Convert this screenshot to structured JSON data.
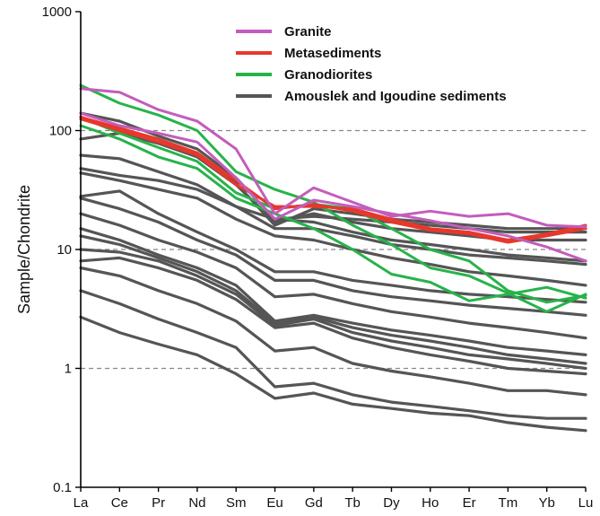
{
  "chart_data": {
    "type": "line",
    "title": "",
    "xlabel": "",
    "ylabel": "Sample/Chondrite",
    "yscale": "log",
    "ylim": [
      0.1,
      1000
    ],
    "yticks": [
      "0.1",
      "1",
      "10",
      "100",
      "1000"
    ],
    "categories": [
      "La",
      "Ce",
      "Pr",
      "Nd",
      "Sm",
      "Eu",
      "Gd",
      "Tb",
      "Dy",
      "Ho",
      "Er",
      "Tm",
      "Yb",
      "Lu"
    ],
    "gridlines": [
      1,
      10,
      100
    ],
    "grid": "dashed horizontal at 1, 10, 100",
    "legend_position": "top-center",
    "legend": [
      {
        "name": "Granite",
        "color": "#c35dbd"
      },
      {
        "name": "Metasediments",
        "color": "#e8372c"
      },
      {
        "name": "Granodiorites",
        "color": "#27b34a"
      },
      {
        "name": "Amouslek and Igoudine sediments",
        "color": "#555555"
      }
    ],
    "series": [
      {
        "group": "Amouslek and Igoudine sediments",
        "color": "#555555",
        "values": [
          140,
          120,
          90,
          70,
          40,
          18,
          19,
          18,
          17,
          16,
          15,
          14,
          14,
          14
        ]
      },
      {
        "group": "Amouslek and Igoudine sediments",
        "color": "#555555",
        "values": [
          85,
          95,
          78,
          60,
          35,
          17,
          20,
          17,
          15,
          14,
          13,
          12,
          12,
          12
        ]
      },
      {
        "group": "Amouslek and Igoudine sediments",
        "color": "#555555",
        "values": [
          130,
          100,
          80,
          62,
          36,
          16,
          22,
          20,
          18,
          17,
          16,
          15,
          15,
          15
        ]
      },
      {
        "group": "Amouslek and Igoudine sediments",
        "color": "#555555",
        "values": [
          62,
          58,
          45,
          35,
          23,
          15,
          15,
          13,
          11,
          10,
          9,
          8.5,
          8,
          7.5
        ]
      },
      {
        "group": "Amouslek and Igoudine sediments",
        "color": "#555555",
        "values": [
          48,
          42,
          38,
          32,
          23,
          18,
          17,
          14,
          12,
          11,
          10,
          9,
          8.5,
          8
        ]
      },
      {
        "group": "Amouslek and Igoudine sediments",
        "color": "#555555",
        "values": [
          44,
          38,
          32,
          27,
          18,
          13,
          12,
          10,
          8.5,
          7.5,
          6.5,
          6,
          5.5,
          5
        ]
      },
      {
        "group": "Amouslek and Igoudine sediments",
        "color": "#555555",
        "values": [
          28,
          31,
          20,
          14,
          10,
          6.5,
          6.5,
          5.5,
          5,
          4.5,
          4.2,
          4,
          3.8,
          3.6
        ]
      },
      {
        "group": "Amouslek and Igoudine sediments",
        "color": "#555555",
        "values": [
          27,
          22,
          17,
          12,
          9,
          5.5,
          5.5,
          4.5,
          4,
          3.7,
          3.4,
          3.2,
          3,
          2.8
        ]
      },
      {
        "group": "Amouslek and Igoudine sediments",
        "color": "#555555",
        "values": [
          20,
          16,
          12,
          9.5,
          7,
          4,
          4.2,
          3.5,
          3,
          2.7,
          2.4,
          2.2,
          2,
          1.8
        ]
      },
      {
        "group": "Amouslek and Igoudine sediments",
        "color": "#555555",
        "values": [
          15,
          12,
          9,
          7,
          5,
          2.5,
          2.8,
          2.4,
          2.1,
          1.9,
          1.7,
          1.5,
          1.4,
          1.3
        ]
      },
      {
        "group": "Amouslek and Igoudine sediments",
        "color": "#555555",
        "values": [
          13,
          11,
          8.5,
          6.5,
          4.5,
          2.4,
          2.7,
          2.2,
          1.9,
          1.7,
          1.5,
          1.3,
          1.2,
          1.1
        ]
      },
      {
        "group": "Amouslek and Igoudine sediments",
        "color": "#555555",
        "values": [
          10,
          9.5,
          8,
          6,
          4.2,
          2.3,
          2.6,
          2.0,
          1.7,
          1.5,
          1.3,
          1.2,
          1.1,
          1.0
        ]
      },
      {
        "group": "Amouslek and Igoudine sediments",
        "color": "#555555",
        "values": [
          8,
          8.5,
          7,
          5.5,
          3.8,
          2.2,
          2.4,
          1.8,
          1.5,
          1.3,
          1.15,
          1.0,
          0.95,
          0.9
        ]
      },
      {
        "group": "Amouslek and Igoudine sediments",
        "color": "#555555",
        "values": [
          7,
          6,
          4.5,
          3.5,
          2.5,
          1.4,
          1.5,
          1.1,
          0.95,
          0.85,
          0.75,
          0.65,
          0.65,
          0.6
        ]
      },
      {
        "group": "Amouslek and Igoudine sediments",
        "color": "#555555",
        "values": [
          4.5,
          3.5,
          2.6,
          2,
          1.5,
          0.7,
          0.75,
          0.6,
          0.52,
          0.48,
          0.44,
          0.4,
          0.38,
          0.38
        ]
      },
      {
        "group": "Amouslek and Igoudine sediments",
        "color": "#555555",
        "values": [
          2.7,
          2,
          1.6,
          1.3,
          0.9,
          0.56,
          0.62,
          0.5,
          0.46,
          0.42,
          0.4,
          0.35,
          0.32,
          0.3
        ]
      },
      {
        "group": "Granodiorites",
        "color": "#27b34a",
        "values": [
          240,
          170,
          135,
          100,
          45,
          32,
          25,
          16,
          11,
          7,
          6,
          4.3,
          3,
          4.2
        ]
      },
      {
        "group": "Granodiorites",
        "color": "#27b34a",
        "values": [
          110,
          85,
          60,
          48,
          27,
          20,
          15,
          10,
          6.2,
          5.3,
          3.7,
          4.2,
          4.8,
          3.9
        ]
      },
      {
        "group": "Granodiorites",
        "color": "#27b34a",
        "values": [
          130,
          95,
          72,
          55,
          30,
          22,
          24,
          22,
          15,
          10,
          8,
          4.5,
          3.6,
          4.1
        ]
      },
      {
        "group": "Metasediments",
        "color": "#e8372c",
        "values": [
          130,
          105,
          85,
          65,
          38,
          22,
          24,
          21,
          17,
          14.5,
          13.5,
          11.5,
          13,
          15
        ]
      },
      {
        "group": "Metasediments",
        "color": "#e8372c",
        "values": [
          125,
          100,
          80,
          62,
          35,
          23,
          23,
          22,
          18,
          15,
          14,
          12,
          13.5,
          16
        ]
      },
      {
        "group": "Granite",
        "color": "#c35dbd",
        "values": [
          225,
          210,
          150,
          120,
          70,
          20,
          33,
          25,
          19,
          21,
          19,
          20,
          16,
          15.5
        ]
      },
      {
        "group": "Granite",
        "color": "#c35dbd",
        "values": [
          140,
          110,
          95,
          80,
          40,
          18,
          26,
          23,
          20,
          17.5,
          15,
          13,
          10.5,
          8
        ]
      }
    ]
  }
}
